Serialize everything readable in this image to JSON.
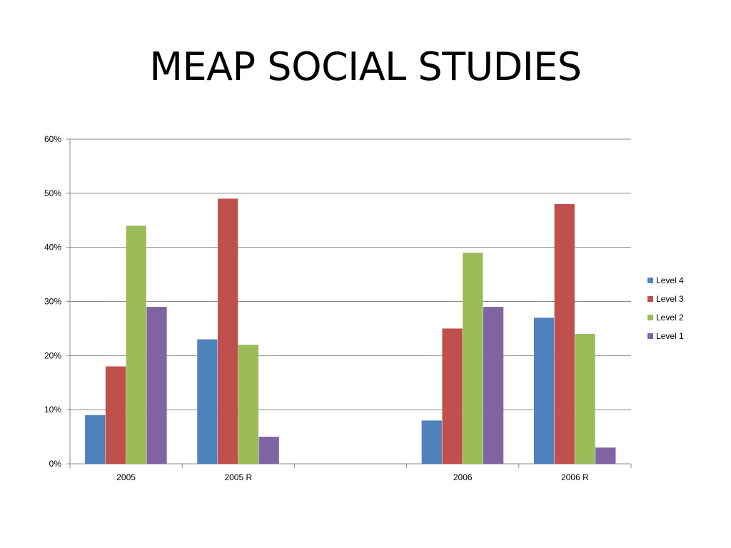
{
  "slide": {
    "title": "MEAP SOCIAL STUDIES"
  },
  "chart_data": {
    "type": "bar",
    "title": "MEAP SOCIAL STUDIES",
    "categories": [
      "2005",
      "2005 R",
      "",
      "2006",
      "2006 R"
    ],
    "series": [
      {
        "name": "Level 4",
        "color": "#4f81bd",
        "values": [
          9,
          23,
          null,
          8,
          27
        ]
      },
      {
        "name": "Level 3",
        "color": "#c0504d",
        "values": [
          18,
          49,
          null,
          25,
          48
        ]
      },
      {
        "name": "Level 2",
        "color": "#9bbb59",
        "values": [
          44,
          22,
          null,
          39,
          24
        ]
      },
      {
        "name": "Level 1",
        "color": "#8064a2",
        "values": [
          29,
          5,
          null,
          29,
          3
        ]
      }
    ],
    "y_ticks": [
      0,
      10,
      20,
      30,
      40,
      50,
      60
    ],
    "y_tick_labels": [
      "0%",
      "10%",
      "20%",
      "30%",
      "40%",
      "50%",
      "60%"
    ],
    "ylim": [
      0,
      60
    ],
    "xlabel": "",
    "ylabel": "",
    "grid": true,
    "legend_position": "right"
  }
}
